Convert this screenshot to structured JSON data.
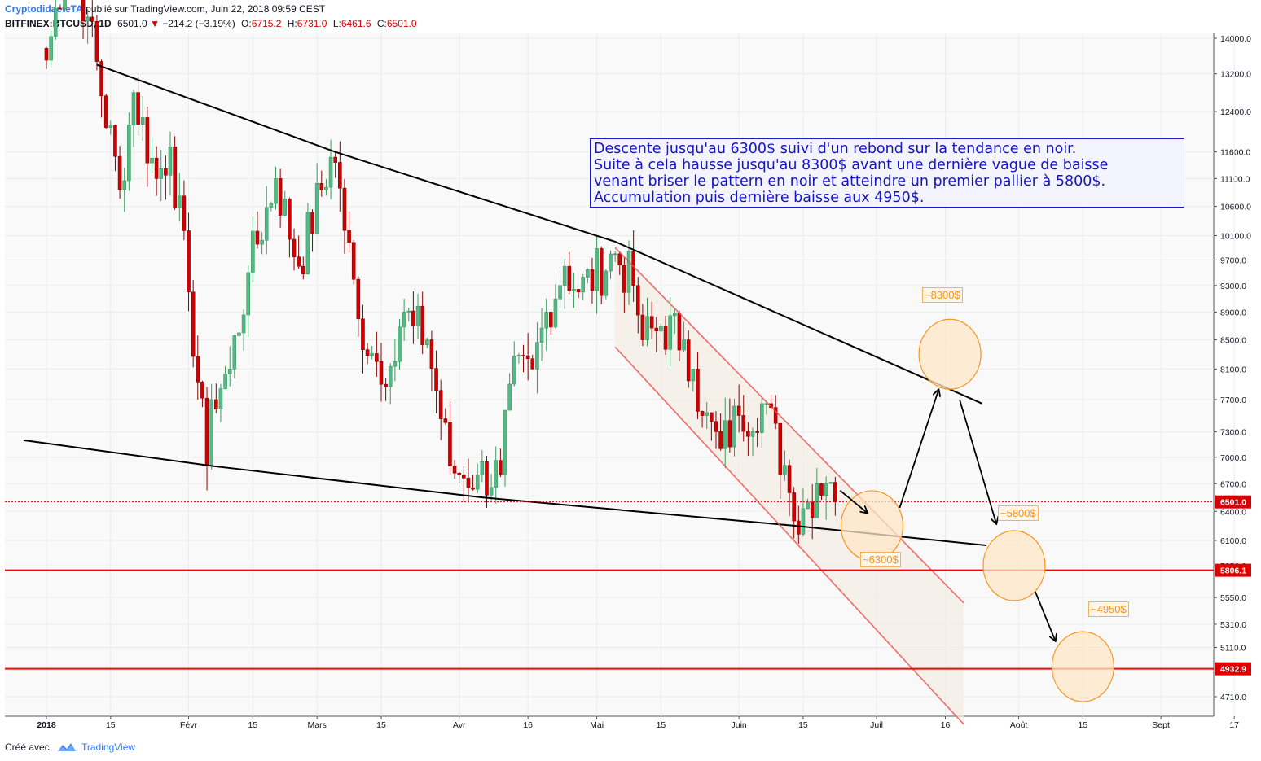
{
  "header": {
    "author": "CryptodidacteTA",
    "published": "publié sur TradingView.com, Juin 22, 2018 09:59 CEST",
    "symbol": "BITFINEX:BTCUSD, 1D",
    "last": "6501.0",
    "change": "−214.2 (−3.19%)",
    "open_label": "O:",
    "open": "6715.2",
    "high_label": "H:",
    "high": "6731.0",
    "low_label": "L:",
    "low": "6461.6",
    "close_label": "C:",
    "close": "6501.0"
  },
  "annotation": {
    "lines": [
      "Descente jusqu'au 6300$ suivi d'un rebond sur la tendance en noir.",
      "Suite à cela hausse jusqu'au 8300$ avant une dernière vague de baisse",
      "venant briser le pattern en noir et atteindre un premier pallier à 5800$.",
      "Accumulation puis dernière baisse aux 4950$."
    ]
  },
  "targets": {
    "t8300": "~8300$",
    "t6300": "~6300$",
    "t5800": "~5800$",
    "t4950": "~4950$"
  },
  "footer": {
    "created": "Créé avec",
    "brand": "TradingView"
  },
  "colors": {
    "up": "#53b987",
    "down": "#d00000",
    "support": "#ff0000",
    "trend": "#000000",
    "channel": "#ef5350",
    "note_text": "#1515c8",
    "target": "#f7931a"
  },
  "chart_data": {
    "type": "candlestick",
    "y_scale": "log",
    "ylim": [
      4500,
      14200
    ],
    "y_ticks": [
      "14000.0",
      "13200.0",
      "12400.0",
      "11600.0",
      "11100.0",
      "10600.0",
      "10100.0",
      "9700.0",
      "9300.0",
      "8900.0",
      "8500.0",
      "8100.0",
      "7700.0",
      "7300.0",
      "7000.0",
      "6700.0",
      "6400.0",
      "6100.0",
      "5850.0",
      "5550.0",
      "5310.0",
      "5110.0",
      "4710.0"
    ],
    "x_ticks": [
      "2018",
      "15",
      "Févr",
      "15",
      "Mars",
      "15",
      "Avr",
      "16",
      "Mai",
      "15",
      "Juin",
      "15",
      "Juil",
      "16",
      "Août",
      "15",
      "Sept",
      "17"
    ],
    "last_price_label": "6501.0",
    "levels": [
      {
        "label": "5806.1",
        "value": 5806.1
      },
      {
        "label": "4932.9",
        "value": 4932.9
      }
    ],
    "anchors": [
      {
        "date": "2018-01-01",
        "close": 13500
      },
      {
        "date": "2018-01-06",
        "close": 16500
      },
      {
        "date": "2018-01-10",
        "close": 14500
      },
      {
        "date": "2018-01-17",
        "close": 10900
      },
      {
        "date": "2018-01-20",
        "close": 12800
      },
      {
        "date": "2018-01-25",
        "close": 11100
      },
      {
        "date": "2018-01-28",
        "close": 11700
      },
      {
        "date": "2018-02-01",
        "close": 9200
      },
      {
        "date": "2018-02-05",
        "close": 6900
      },
      {
        "date": "2018-02-06",
        "close": 7700
      },
      {
        "date": "2018-02-10",
        "close": 8100
      },
      {
        "date": "2018-02-14",
        "close": 9500
      },
      {
        "date": "2018-02-20",
        "close": 11100
      },
      {
        "date": "2018-02-25",
        "close": 9600
      },
      {
        "date": "2018-03-04",
        "close": 11500
      },
      {
        "date": "2018-03-05",
        "close": 11400
      },
      {
        "date": "2018-03-10",
        "close": 8800
      },
      {
        "date": "2018-03-14",
        "close": 8200
      },
      {
        "date": "2018-03-18",
        "close": 8200
      },
      {
        "date": "2018-03-20",
        "close": 8900
      },
      {
        "date": "2018-03-22",
        "close": 8700
      },
      {
        "date": "2018-03-25",
        "close": 8500
      },
      {
        "date": "2018-03-30",
        "close": 6900
      },
      {
        "date": "2018-04-01",
        "close": 6800
      },
      {
        "date": "2018-04-05",
        "close": 6800
      },
      {
        "date": "2018-04-10",
        "close": 6800
      },
      {
        "date": "2018-04-12",
        "close": 7900
      },
      {
        "date": "2018-04-17",
        "close": 8100
      },
      {
        "date": "2018-04-20",
        "close": 8900
      },
      {
        "date": "2018-04-24",
        "close": 9600
      },
      {
        "date": "2018-04-27",
        "close": 9200
      },
      {
        "date": "2018-05-05",
        "close": 9800
      },
      {
        "date": "2018-05-09",
        "close": 9300
      },
      {
        "date": "2018-05-11",
        "close": 8500
      },
      {
        "date": "2018-05-15",
        "close": 8700
      },
      {
        "date": "2018-05-20",
        "close": 8500
      },
      {
        "date": "2018-05-22",
        "close": 8100
      },
      {
        "date": "2018-05-24",
        "close": 7500
      },
      {
        "date": "2018-05-28",
        "close": 7100
      },
      {
        "date": "2018-06-01",
        "close": 7500
      },
      {
        "date": "2018-06-06",
        "close": 7650
      },
      {
        "date": "2018-06-08",
        "close": 7600
      },
      {
        "date": "2018-06-10",
        "close": 6800
      },
      {
        "date": "2018-06-12",
        "close": 6600
      },
      {
        "date": "2018-06-13",
        "close": 6300
      },
      {
        "date": "2018-06-16",
        "close": 6500
      },
      {
        "date": "2018-06-18",
        "close": 6700
      },
      {
        "date": "2018-06-21",
        "close": 6715
      },
      {
        "date": "2018-06-22",
        "close": 6501
      }
    ],
    "trendlines": [
      {
        "name": "upper-trend",
        "points": [
          [
            "2018-01-12",
            13400
          ],
          [
            "2018-03-05",
            11600
          ],
          [
            "2018-05-05",
            10000
          ],
          [
            "2018-07-24",
            7650
          ]
        ]
      },
      {
        "name": "lower-trend",
        "points": [
          [
            "2017-12-27",
            7200
          ],
          [
            "2018-02-06",
            6900
          ],
          [
            "2018-04-06",
            6550
          ],
          [
            "2018-06-13",
            6250
          ],
          [
            "2018-07-25",
            6050
          ]
        ]
      },
      {
        "name": "channel-upper",
        "points": [
          [
            "2018-05-05",
            9900
          ],
          [
            "2018-07-20",
            5500
          ]
        ]
      },
      {
        "name": "channel-lower",
        "points": [
          [
            "2018-05-05",
            8400
          ],
          [
            "2018-07-20",
            4500
          ]
        ]
      }
    ],
    "projections": [
      {
        "label": "~6300$",
        "date": "2018-06-30",
        "price": 6250
      },
      {
        "label": "~8300$",
        "date": "2018-07-17",
        "price": 8300
      },
      {
        "label": "~5800$",
        "date": "2018-07-31",
        "price": 5850
      },
      {
        "label": "~4950$",
        "date": "2018-08-15",
        "price": 4950
      }
    ]
  }
}
